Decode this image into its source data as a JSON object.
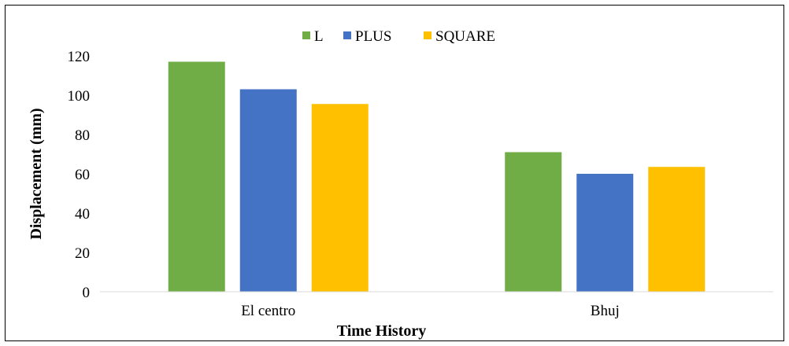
{
  "chart_data": {
    "type": "bar",
    "categories": [
      "El centro",
      "Bhuj"
    ],
    "series": [
      {
        "name": "L",
        "values": [
          117,
          71
        ],
        "color": "#70ad47"
      },
      {
        "name": "PLUS",
        "values": [
          103,
          60
        ],
        "color": "#4472c4"
      },
      {
        "name": "SQUARE",
        "values": [
          95.5,
          63.5
        ],
        "color": "#ffc000"
      }
    ],
    "xlabel": "Time History",
    "ylabel": "Displacement (mm)",
    "ylim": [
      0,
      120
    ],
    "yticks": [
      0,
      20,
      40,
      60,
      80,
      100,
      120
    ],
    "grid": false,
    "legend_position": "top"
  }
}
